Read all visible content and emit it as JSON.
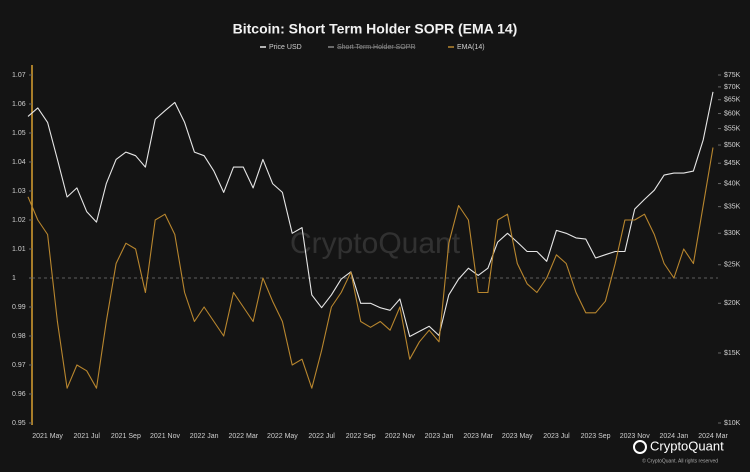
{
  "chart_data": {
    "type": "line",
    "title": "Bitcoin: Short Term Holder SOPR (EMA 14)",
    "categories": [
      null,
      null,
      "2021 May",
      null,
      null,
      null,
      "2021 Jul",
      null,
      null,
      null,
      "2021 Sep",
      null,
      null,
      null,
      "2021 Nov",
      null,
      null,
      null,
      "2022 Jan",
      null,
      null,
      null,
      "2022 Mar",
      null,
      null,
      null,
      "2022 May",
      null,
      null,
      null,
      "2022 Jul",
      null,
      null,
      null,
      "2022 Sep",
      null,
      null,
      null,
      "2022 Nov",
      null,
      null,
      null,
      "2023 Jan",
      null,
      null,
      null,
      "2023 Mar",
      null,
      null,
      null,
      "2023 May",
      null,
      null,
      null,
      "2023 Jul",
      null,
      null,
      null,
      "2023 Sep",
      null,
      null,
      null,
      "2023 Nov",
      null,
      null,
      null,
      "2024 Jan",
      null,
      null,
      null,
      "2024 Mar"
    ],
    "series": [
      {
        "name": "Price USD",
        "color": "#e6e6e6",
        "axis": "y2",
        "values": [
          59000,
          62000,
          57000,
          46000,
          37000,
          39000,
          34000,
          32000,
          40000,
          46000,
          48000,
          47000,
          44000,
          58000,
          61000,
          64000,
          57000,
          48000,
          47000,
          43000,
          38000,
          44000,
          44000,
          39000,
          46000,
          40000,
          38000,
          30000,
          31000,
          21000,
          19500,
          21000,
          23000,
          24000,
          20000,
          20000,
          19500,
          19200,
          20500,
          16500,
          17000,
          17500,
          16600,
          21000,
          23000,
          24500,
          23500,
          24500,
          28500,
          30000,
          28500,
          27000,
          27000,
          25500,
          30500,
          30000,
          29200,
          29000,
          26000,
          26500,
          27000,
          27000,
          34500,
          36500,
          38500,
          42000,
          42500,
          42500,
          43000,
          51500,
          68000
        ]
      },
      {
        "name": "EMA(14)",
        "color": "#b8862e",
        "values": [
          1.028,
          1.02,
          1.015,
          0.985,
          0.962,
          0.97,
          0.968,
          0.962,
          0.985,
          1.005,
          1.012,
          1.01,
          0.995,
          1.02,
          1.022,
          1.015,
          0.995,
          0.985,
          0.99,
          0.985,
          0.98,
          0.995,
          0.99,
          0.985,
          1.0,
          0.992,
          0.985,
          0.97,
          0.972,
          0.962,
          0.975,
          0.99,
          0.995,
          1.002,
          0.985,
          0.983,
          0.985,
          0.982,
          0.99,
          0.972,
          0.978,
          0.982,
          0.978,
          1.012,
          1.025,
          1.02,
          0.995,
          0.995,
          1.02,
          1.022,
          1.005,
          0.998,
          0.995,
          1.0,
          1.008,
          1.005,
          0.995,
          0.988,
          0.988,
          0.992,
          1.005,
          1.02,
          1.02,
          1.022,
          1.015,
          1.005,
          1.0,
          1.01,
          1.005,
          1.025,
          1.045
        ]
      }
    ],
    "hidden_series": [
      {
        "name": "Short Term Holder SOPR",
        "color": "#888888"
      }
    ],
    "ylim": [
      0.95,
      1.07
    ],
    "yticks": [
      0.95,
      0.96,
      0.97,
      0.98,
      0.99,
      1,
      1.01,
      1.02,
      1.03,
      1.04,
      1.05,
      1.06,
      1.07
    ],
    "y2lim": [
      10000,
      75000
    ],
    "y2_log": true,
    "y2ticks": [
      {
        "value": 10000,
        "label": "$10K"
      },
      {
        "value": 15000,
        "label": "$15K"
      },
      {
        "value": 20000,
        "label": "$20K"
      },
      {
        "value": 25000,
        "label": "$25K"
      },
      {
        "value": 30000,
        "label": "$30K"
      },
      {
        "value": 35000,
        "label": "$35K"
      },
      {
        "value": 40000,
        "label": "$40K"
      },
      {
        "value": 45000,
        "label": "$45K"
      },
      {
        "value": 50000,
        "label": "$50K"
      },
      {
        "value": 55000,
        "label": "$55K"
      },
      {
        "value": 60000,
        "label": "$60K"
      },
      {
        "value": 65000,
        "label": "$65K"
      },
      {
        "value": 70000,
        "label": "$70K"
      },
      {
        "value": 75000,
        "label": "$75K"
      }
    ],
    "reference_line": 1,
    "watermark": "CryptoQuant",
    "brand": "CryptoQuant",
    "copyright": "© CryptoQuant. All rights reserved"
  }
}
